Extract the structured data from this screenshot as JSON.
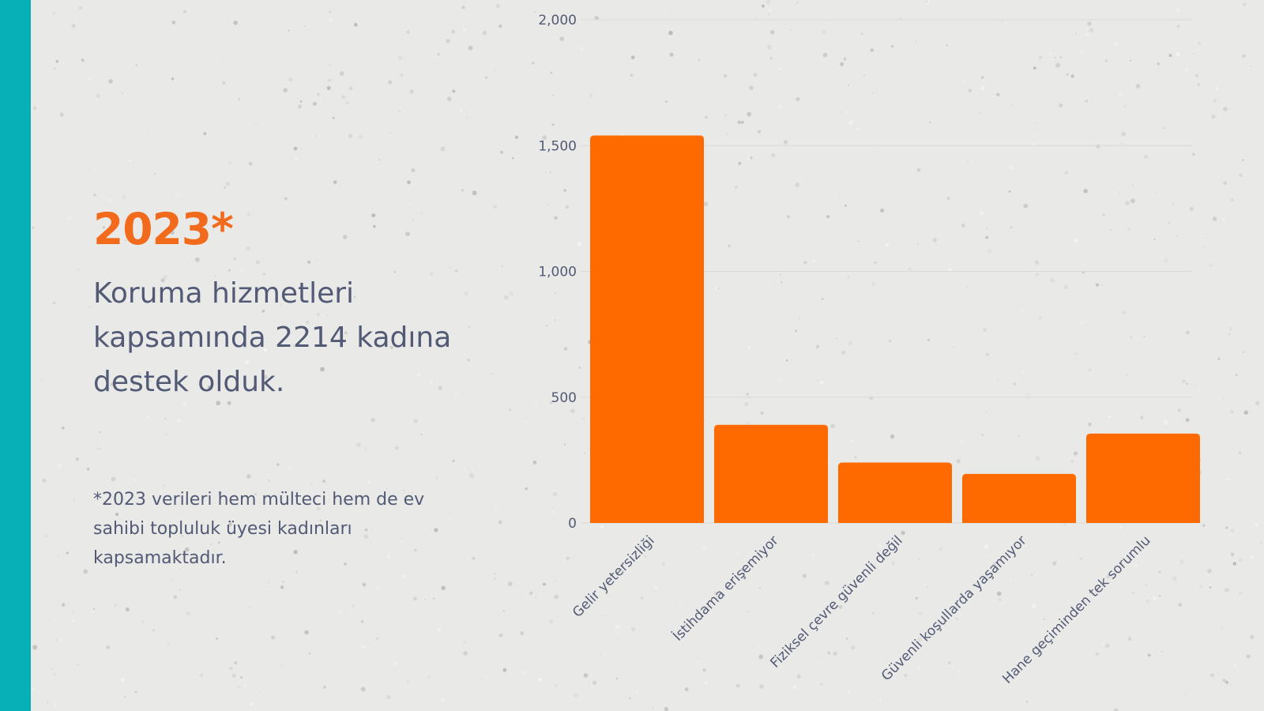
{
  "slide": {
    "year": "2023*",
    "headline": "Koruma hizmetleri kapsamında 2214 kadına destek olduk.",
    "footnote": "*2023 verileri hem mülteci hem de ev sahibi topluluk üyesi kadınları kapsamaktadır."
  },
  "colors": {
    "accent_bar": "#06b0b6",
    "highlight": "#f26a1b",
    "bar": "#ff6a00",
    "text": "#525a75"
  },
  "chart_data": {
    "type": "bar",
    "title": "",
    "xlabel": "",
    "ylabel": "",
    "categories": [
      "Gelir yetersizliği",
      "İstihdama erişemiyor",
      "Fiziksel çevre güvenli değil",
      "Güvenli koşullarda yaşamıyor",
      "Hane geçiminden tek sorumlu"
    ],
    "values": [
      1540,
      390,
      240,
      195,
      355
    ],
    "ylim": [
      0,
      2000
    ],
    "yticks": [
      0,
      500,
      1000,
      1500,
      2000
    ],
    "ytick_labels": [
      "0",
      "500",
      "1,000",
      "1,500",
      "2,000"
    ],
    "grid": true,
    "legend": "none"
  }
}
